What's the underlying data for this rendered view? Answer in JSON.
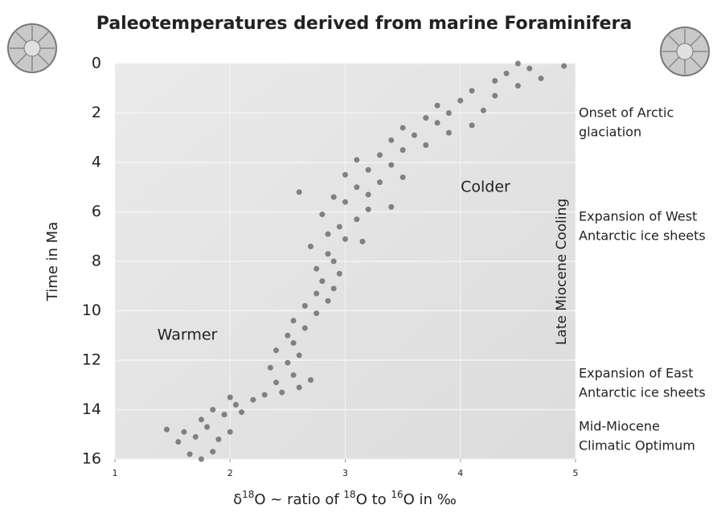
{
  "chart_data": {
    "type": "scatter",
    "title": "Paleotemperatures derived from marine Foraminifera",
    "ylabel": "Time in Ma",
    "xlabel_parts": [
      "δ",
      "18",
      "O ~ ratio of ",
      "18",
      "O to ",
      "16",
      "O in ‰"
    ],
    "xlim": [
      1,
      5
    ],
    "xticks": [
      1,
      2,
      3,
      4,
      5
    ],
    "ylim": [
      0,
      16
    ],
    "yticks": [
      0,
      2,
      4,
      6,
      8,
      10,
      12,
      14,
      16
    ],
    "y_inverted": true,
    "grid": true,
    "color": "#6e6e6e",
    "x": [
      1.75,
      1.65,
      1.85,
      1.55,
      1.7,
      1.9,
      1.45,
      1.6,
      1.8,
      2.0,
      1.75,
      1.95,
      2.1,
      1.85,
      2.05,
      2.2,
      2.0,
      2.3,
      2.45,
      2.6,
      2.4,
      2.7,
      2.55,
      2.35,
      2.5,
      2.6,
      2.4,
      2.55,
      2.5,
      2.65,
      2.55,
      2.75,
      2.65,
      2.85,
      2.75,
      2.9,
      2.8,
      2.95,
      2.75,
      2.9,
      2.85,
      2.7,
      3.0,
      3.15,
      2.85,
      2.95,
      3.1,
      2.8,
      3.2,
      3.4,
      3.0,
      2.9,
      3.2,
      2.6,
      3.1,
      3.3,
      3.5,
      3.0,
      3.2,
      3.4,
      3.1,
      3.3,
      3.5,
      3.7,
      3.4,
      3.6,
      3.9,
      3.5,
      3.8,
      4.1,
      3.7,
      3.9,
      4.2,
      3.8,
      4.0,
      4.3,
      4.1,
      4.5,
      4.3,
      4.7,
      4.4,
      4.6,
      4.9,
      4.5
    ],
    "values": [
      16.0,
      15.8,
      15.7,
      15.3,
      15.1,
      15.2,
      14.8,
      14.9,
      14.7,
      14.9,
      14.4,
      14.2,
      14.1,
      14.0,
      13.8,
      13.6,
      13.5,
      13.4,
      13.3,
      13.1,
      12.9,
      12.8,
      12.6,
      12.3,
      12.1,
      11.8,
      11.6,
      11.3,
      11.0,
      10.7,
      10.4,
      10.1,
      9.8,
      9.6,
      9.3,
      9.1,
      8.8,
      8.5,
      8.3,
      8.0,
      7.7,
      7.4,
      7.1,
      7.2,
      6.9,
      6.6,
      6.3,
      6.1,
      5.9,
      5.8,
      5.6,
      5.4,
      5.3,
      5.2,
      5.0,
      4.8,
      4.6,
      4.5,
      4.3,
      4.1,
      3.9,
      3.7,
      3.5,
      3.3,
      3.1,
      2.9,
      2.8,
      2.6,
      2.4,
      2.5,
      2.2,
      2.0,
      1.9,
      1.7,
      1.5,
      1.3,
      1.1,
      0.9,
      0.7,
      0.6,
      0.4,
      0.2,
      0.1,
      0.0
    ],
    "annotations": {
      "warmer": "Warmer",
      "colder": "Colder",
      "cooling": "Late Miocene Cooling",
      "events": [
        [
          "Onset of Arctic",
          "glaciation"
        ],
        [
          "Expansion of West",
          "Antarctic ice sheets"
        ],
        [
          "Expansion of East",
          "Antarctic ice sheets"
        ],
        [
          "Mid-Miocene",
          "Climatic Optimum"
        ]
      ]
    }
  }
}
